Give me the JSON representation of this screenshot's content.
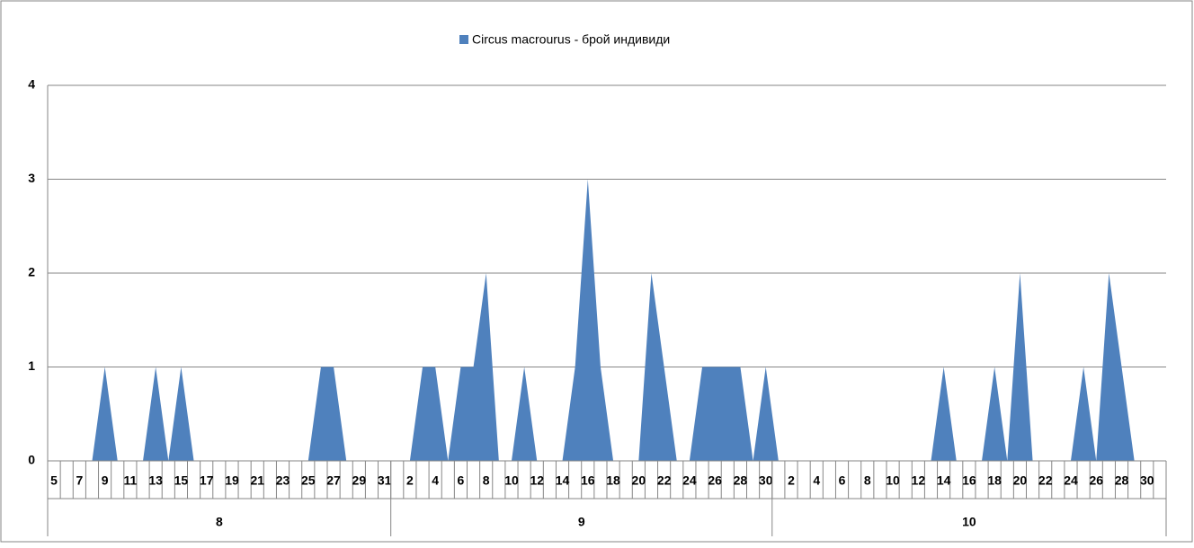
{
  "chart_data": {
    "type": "area",
    "legend": "top",
    "series": [
      {
        "name": "Circus macrourus - брой индивиди",
        "color": "#4f81bd",
        "values": [
          0,
          0,
          0,
          0,
          1,
          0,
          0,
          0,
          1,
          0,
          1,
          0,
          0,
          0,
          0,
          0,
          0,
          0,
          0,
          0,
          0,
          1,
          1,
          0,
          0,
          0,
          0,
          0,
          0,
          1,
          1,
          0,
          1,
          1,
          2,
          0,
          0,
          1,
          0,
          0,
          0,
          1,
          3,
          1,
          0,
          0,
          0,
          2,
          1,
          0,
          0,
          1,
          1,
          1,
          1,
          0,
          1,
          0,
          0,
          0,
          0,
          0,
          0,
          0,
          0,
          0,
          0,
          0,
          0,
          0,
          1,
          0,
          0,
          0,
          1,
          0,
          2,
          0,
          0,
          0,
          0,
          1,
          0,
          2,
          1,
          0,
          0,
          0
        ]
      }
    ],
    "categories": [
      "5",
      null,
      "7",
      null,
      "9",
      null,
      "11",
      null,
      "13",
      null,
      "15",
      null,
      "17",
      null,
      "19",
      null,
      "21",
      null,
      "23",
      null,
      "25",
      null,
      "27",
      null,
      "29",
      null,
      "31",
      null,
      "2",
      null,
      "4",
      null,
      "6",
      null,
      "8",
      null,
      "10",
      null,
      "12",
      null,
      "14",
      null,
      "16",
      null,
      "18",
      null,
      "20",
      null,
      "22",
      null,
      "24",
      null,
      "26",
      null,
      "28",
      null,
      "30",
      null,
      "2",
      null,
      "4",
      null,
      "6",
      null,
      "8",
      null,
      "10",
      null,
      "12",
      null,
      "14",
      null,
      "16",
      null,
      "18",
      null,
      "20",
      null,
      "22",
      null,
      "24",
      null,
      "26",
      null,
      "28",
      null,
      "30",
      null
    ],
    "groups": [
      {
        "label": "8",
        "count": 27
      },
      {
        "label": "9",
        "count": 30
      },
      {
        "label": "10",
        "count": 31
      }
    ],
    "ylim": [
      0,
      4
    ],
    "yticks": [
      0,
      1,
      2,
      3,
      4
    ],
    "grid": true
  }
}
